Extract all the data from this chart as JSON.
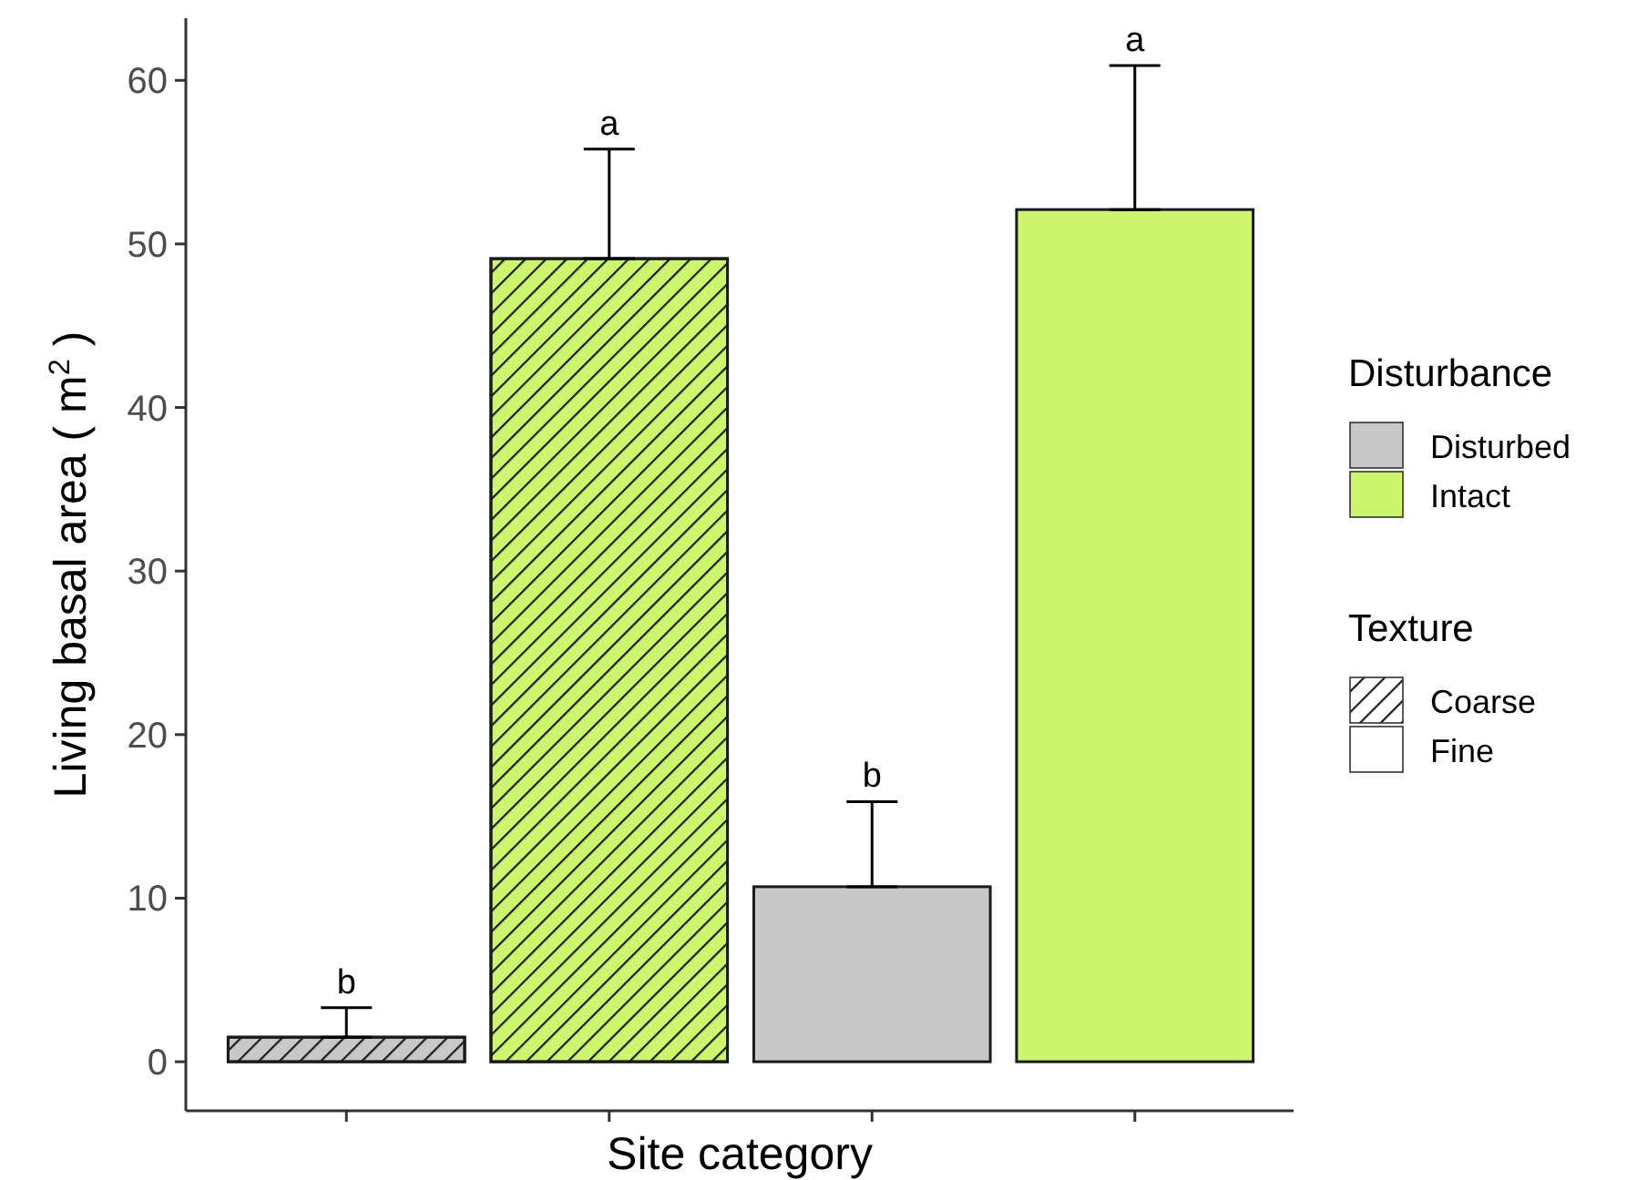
{
  "chart_data": {
    "type": "bar",
    "xlabel": "Site category",
    "ylabel": "Living basal area ( m$^{2}$ )",
    "legend_title": "Disturbance",
    "legend": "right",
    "categories": [
      null,
      null,
      null,
      null
    ],
    "series": [
      {
        "name": "Disturbed",
        "color": "#c8c8c8",
        "values": [
          1.5,
          null,
          10.7,
          null
        ],
        "errors": [
          [
            1.5,
            3.3
          ],
          null,
          [
            10.7,
            15.9
          ],
          null
        ]
      },
      {
        "name": "Intact",
        "color": "#cdf56e",
        "values": [
          null,
          49.1,
          null,
          52.1
        ],
        "errors": [
          null,
          [
            49.1,
            55.8
          ],
          null,
          [
            52.1,
            60.9
          ]
        ]
      }
    ],
    "annotations": [
      "Texture",
      "Coarse",
      "Fine",
      {
        "text": "b",
        "y": 3.3
      },
      {
        "text": "a",
        "y": 55.8
      },
      {
        "text": "b",
        "y": 15.9
      },
      {
        "text": "a",
        "y": 60.9
      }
    ],
    "ylim": [
      -3,
      63.8
    ],
    "yticks": [
      0,
      10,
      20,
      30,
      40,
      50,
      60
    ],
    "grid": false
  }
}
